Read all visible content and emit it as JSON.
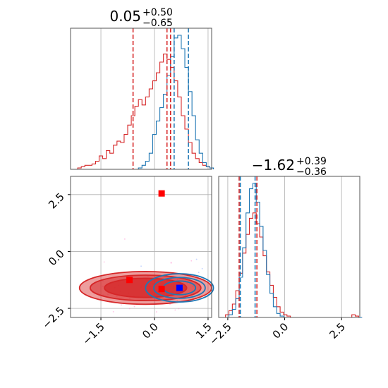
{
  "chart_data": [
    {
      "type": "histogram",
      "panel": "top-left",
      "title_main": "0.05",
      "title_sup": "+0.50",
      "title_sub": "−0.65",
      "xlim": [
        -2.35,
        1.6
      ],
      "bins_x_start": -2.35,
      "bins_x_step": 0.1,
      "series": [
        {
          "name": "",
          "color": "#d62728",
          "counts": [
            0,
            0,
            0.01,
            0.02,
            0.03,
            0.03,
            0.04,
            0.06,
            0.1,
            0.08,
            0.14,
            0.12,
            0.18,
            0.21,
            0.2,
            0.26,
            0.33,
            0.4,
            0.47,
            0.52,
            0.48,
            0.54,
            0.6,
            0.66,
            0.72,
            0.8,
            0.86,
            0.82,
            0.76,
            0.66,
            0.54,
            0.4,
            0.3,
            0.2,
            0.12,
            0.08,
            0.05,
            0.03,
            0.02,
            0.01
          ]
        },
        {
          "name": "",
          "color": "#1f77b4",
          "counts": [
            0,
            0,
            0,
            0,
            0,
            0,
            0,
            0,
            0,
            0,
            0,
            0,
            0,
            0,
            0,
            0,
            0,
            0,
            0,
            0.01,
            0.03,
            0.06,
            0.12,
            0.26,
            0.36,
            0.46,
            0.56,
            0.7,
            0.84,
            0.98,
            1.0,
            0.9,
            0.76,
            0.58,
            0.4,
            0.22,
            0.12,
            0.05,
            0.02,
            0.01
          ]
        }
      ],
      "vlines": [
        {
          "x": -0.6,
          "color": "#d62728"
        },
        {
          "x": 0.35,
          "color": "#d62728"
        },
        {
          "x": 0.45,
          "color": "#d62728"
        },
        {
          "x": 0.55,
          "color": "#1f77b4"
        },
        {
          "x": 0.95,
          "color": "#1f77b4"
        }
      ],
      "grid": true
    },
    {
      "type": "contour",
      "panel": "bottom-left",
      "xlim": [
        -2.35,
        1.6
      ],
      "ylim": [
        -2.9,
        3.3
      ],
      "xticks": [
        -1.5,
        0.0,
        1.5
      ],
      "xtick_labels": [
        "−1.5",
        "0.0",
        "1.5"
      ],
      "yticks": [
        -2.5,
        0.0,
        2.5
      ],
      "ytick_labels": [
        "−2.5",
        "0.0",
        "2.5"
      ],
      "grid": true,
      "blobs": [
        {
          "color": "#d62728",
          "cx": -0.25,
          "cy": -1.6,
          "rx": [
            1.85,
            1.55,
            1.15
          ],
          "ry": [
            0.72,
            0.56,
            0.42
          ],
          "fill_opacity": [
            0.45,
            0.55,
            0.75
          ]
        },
        {
          "color": "#1f77b4",
          "cx": 0.7,
          "cy": -1.6,
          "rx": [
            0.95,
            0.72,
            0.45
          ],
          "ry": [
            0.62,
            0.46,
            0.3
          ],
          "fill_opacity": [
            0,
            0,
            0
          ]
        }
      ],
      "markers": [
        {
          "x": 0.2,
          "y": 2.55,
          "color": "#ff0000"
        },
        {
          "x": -0.7,
          "y": -1.25,
          "color": "#ff0000"
        },
        {
          "x": 0.2,
          "y": -1.65,
          "color": "#ff0000"
        },
        {
          "x": 0.7,
          "y": -1.6,
          "color": "#0000ff"
        }
      ]
    },
    {
      "type": "histogram",
      "panel": "bottom-right",
      "title_main": "−1.62",
      "title_sup": "+0.39",
      "title_sub": "−0.36",
      "xlim": [
        -2.9,
        3.3
      ],
      "xticks": [
        -2.5,
        0.0,
        2.5
      ],
      "xtick_labels": [
        "−2.5",
        "0.0",
        "2.5"
      ],
      "bins_x_start": -2.9,
      "bins_x_step": 0.15,
      "series": [
        {
          "name": "",
          "color": "#d62728",
          "counts": [
            0,
            0,
            0.02,
            0.05,
            0.1,
            0.2,
            0.33,
            0.48,
            0.62,
            0.74,
            0.78,
            0.7,
            0.6,
            0.46,
            0.34,
            0.24,
            0.15,
            0.08,
            0.04,
            0.02,
            0.01,
            0,
            0,
            0,
            0,
            0,
            0,
            0,
            0,
            0,
            0,
            0,
            0,
            0,
            0,
            0,
            0,
            0,
            0,
            0.02,
            0.01,
            0
          ]
        },
        {
          "name": "",
          "color": "#1f77b4",
          "counts": [
            0,
            0,
            0,
            0.02,
            0.06,
            0.14,
            0.3,
            0.52,
            0.78,
            0.96,
            1.0,
            0.86,
            0.68,
            0.5,
            0.32,
            0.18,
            0.08,
            0.03,
            0.01,
            0,
            0,
            0,
            0,
            0,
            0,
            0,
            0,
            0,
            0,
            0,
            0,
            0,
            0,
            0,
            0,
            0,
            0,
            0,
            0,
            0,
            0,
            0
          ]
        }
      ],
      "vlines": [
        {
          "x": -2.0,
          "color": "#d62728"
        },
        {
          "x": -1.95,
          "color": "#1f77b4"
        },
        {
          "x": -1.3,
          "color": "#1f77b4"
        },
        {
          "x": -1.22,
          "color": "#d62728"
        }
      ],
      "grid": true
    }
  ]
}
